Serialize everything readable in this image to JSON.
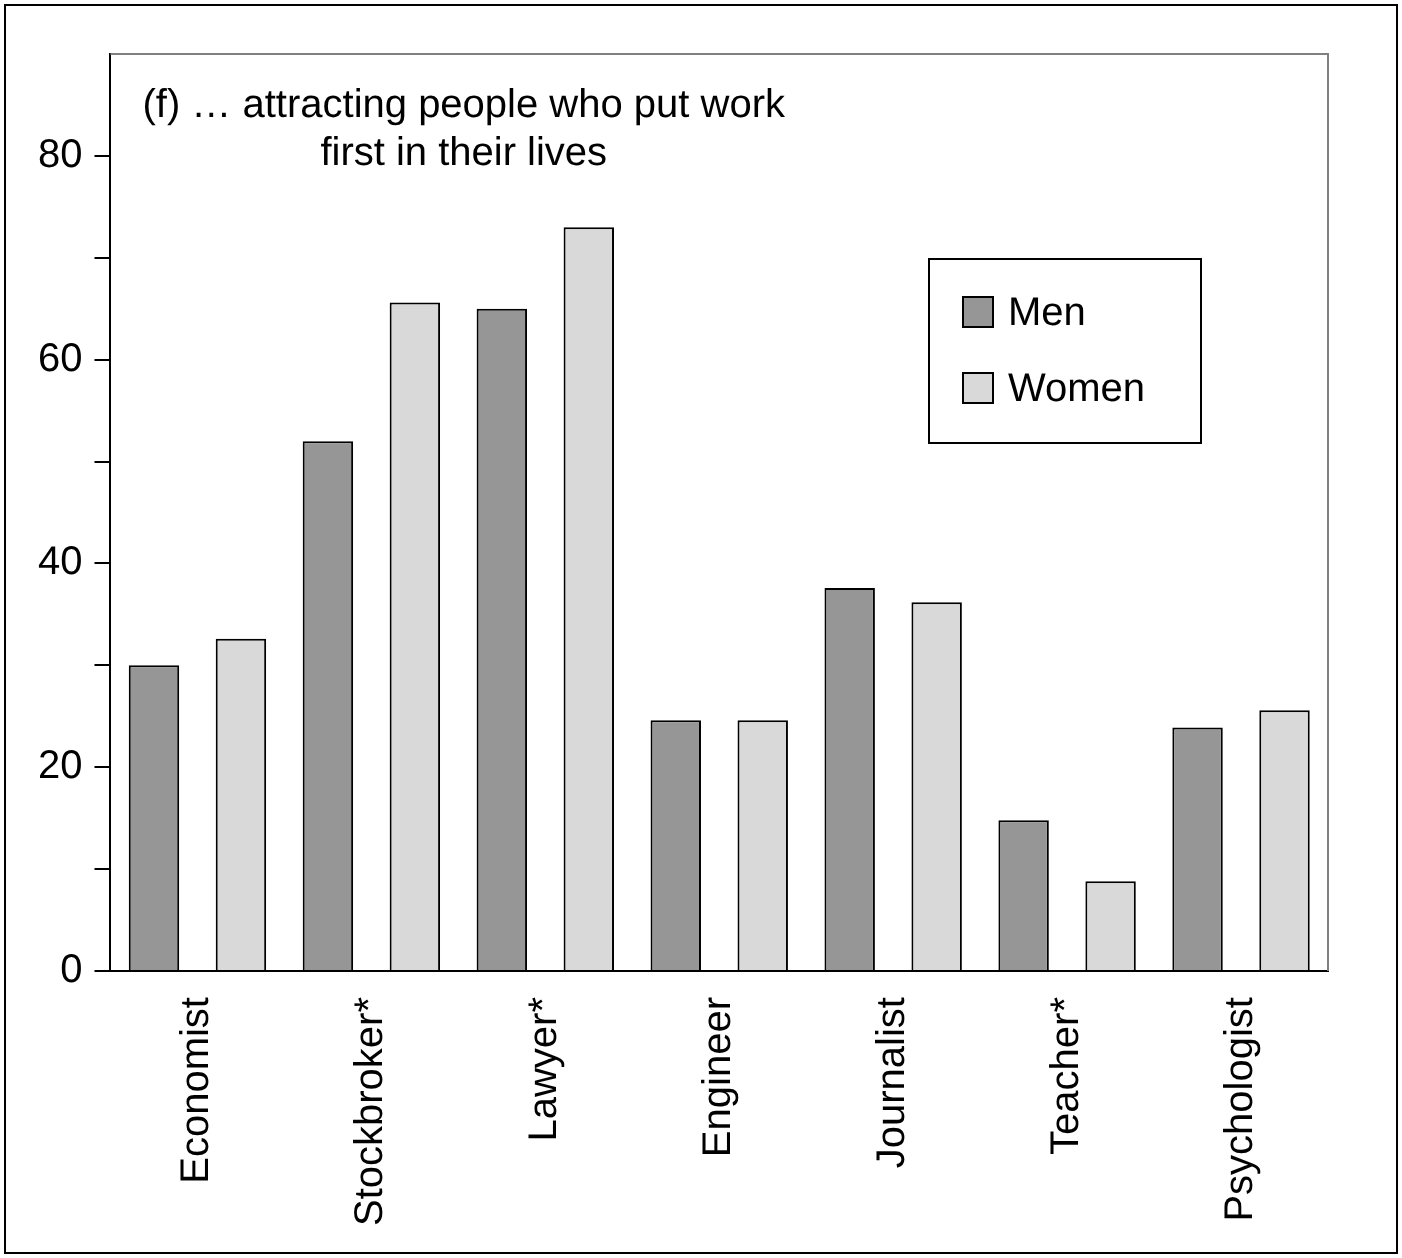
{
  "chart_data": {
    "type": "bar",
    "title": "(f) … attracting people who put work first in their lives",
    "categories": [
      "Economist",
      "Stockbroker*",
      "Lawyer*",
      "Engineer",
      "Journalist",
      "Teacher*",
      "Psychologist"
    ],
    "series": [
      {
        "name": "Men",
        "color": "#969696",
        "values": [
          30,
          52,
          65,
          24.6,
          37.6,
          14.8,
          23.9
        ]
      },
      {
        "name": "Women",
        "color": "#d9d9d9",
        "values": [
          32.6,
          65.6,
          73,
          24.6,
          36.2,
          8.8,
          25.6
        ]
      }
    ],
    "ylim": [
      0,
      90
    ],
    "yticks": [
      0,
      {
        "value": 10,
        "label": null
      },
      20,
      {
        "value": 30,
        "label": null
      },
      40,
      {
        "value": 50,
        "label": null
      },
      60,
      {
        "value": 70,
        "label": null
      },
      80
    ],
    "grid": false,
    "legend": "right"
  }
}
